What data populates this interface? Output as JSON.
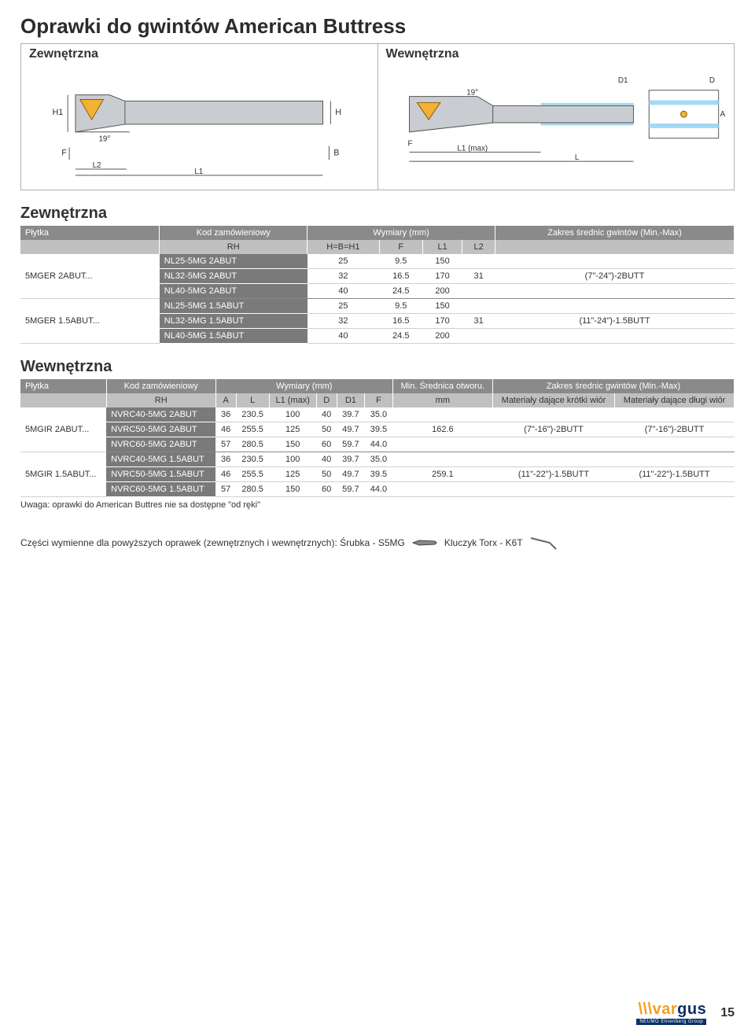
{
  "title": "Oprawki do gwintów American Buttress",
  "diagram": {
    "external_label": "Zewnętrzna",
    "internal_label": "Wewnętrzna",
    "ext_dims": [
      "H1",
      "H",
      "19°",
      "F",
      "B",
      "L2",
      "L1"
    ],
    "int_dims": [
      "D1",
      "D",
      "A",
      "19°",
      "F",
      "L1 (max)",
      "L"
    ],
    "tool_body_color": "#bfc2c6",
    "tool_insert_color": "#f4b233",
    "tool_outline": "#4a4a4a"
  },
  "table_ext": {
    "title": "Zewnętrzna",
    "head1": {
      "plytka": "Płytka",
      "kod": "Kod zamówieniowy",
      "wymiary": "Wymiary (mm)",
      "zakres": "Zakres średnic gwintów (Min.-Max)"
    },
    "head2": [
      "RH",
      "H=B=H1",
      "F",
      "L1",
      "L2",
      ""
    ],
    "groups": [
      {
        "plytka": "5MGER 2ABUT...",
        "l2": "31",
        "range": "(7\"-24\")-2BUTT",
        "rows": [
          {
            "code": "NL25-5MG 2ABUT",
            "h": "25",
            "f": "9.5",
            "l1": "150"
          },
          {
            "code": "NL32-5MG 2ABUT",
            "h": "32",
            "f": "16.5",
            "l1": "170"
          },
          {
            "code": "NL40-5MG 2ABUT",
            "h": "40",
            "f": "24.5",
            "l1": "200"
          }
        ]
      },
      {
        "plytka": "5MGER 1.5ABUT...",
        "l2": "31",
        "range": "(11\"-24\")-1.5BUTT",
        "rows": [
          {
            "code": "NL25-5MG 1.5ABUT",
            "h": "25",
            "f": "9.5",
            "l1": "150"
          },
          {
            "code": "NL32-5MG 1.5ABUT",
            "h": "32",
            "f": "16.5",
            "l1": "170"
          },
          {
            "code": "NL40-5MG 1.5ABUT",
            "h": "40",
            "f": "24.5",
            "l1": "200"
          }
        ]
      }
    ]
  },
  "table_int": {
    "title": "Wewnętrzna",
    "head1": {
      "plytka": "Płytka",
      "kod": "Kod zamówieniowy",
      "wymiary": "Wymiary (mm)",
      "minbore": "Min. Średnica otworu.",
      "zakres": "Zakres średnic gwintów (Min.-Max)"
    },
    "head2": [
      "RH",
      "A",
      "L",
      "L1 (max)",
      "D",
      "D1",
      "F",
      "mm",
      "Materiały dające krótki wiór",
      "Materiały dające długi wiór"
    ],
    "groups": [
      {
        "plytka": "5MGIR 2ABUT...",
        "mm": "162.6",
        "r1": "(7\"-16\")-2BUTT",
        "r2": "(7\"-16\")-2BUTT",
        "rows": [
          {
            "code": "NVRC40-5MG 2ABUT",
            "a": "36",
            "l": "230.5",
            "l1": "100",
            "d": "40",
            "d1": "39.7",
            "f": "35.0"
          },
          {
            "code": "NVRC50-5MG 2ABUT",
            "a": "46",
            "l": "255.5",
            "l1": "125",
            "d": "50",
            "d1": "49.7",
            "f": "39.5"
          },
          {
            "code": "NVRC60-5MG 2ABUT",
            "a": "57",
            "l": "280.5",
            "l1": "150",
            "d": "60",
            "d1": "59.7",
            "f": "44.0"
          }
        ]
      },
      {
        "plytka": "5MGIR 1.5ABUT...",
        "mm": "259.1",
        "r1": "(11\"-22\")-1.5BUTT",
        "r2": "(11\"-22\")-1.5BUTT",
        "rows": [
          {
            "code": "NVRC40-5MG 1.5ABUT",
            "a": "36",
            "l": "230.5",
            "l1": "100",
            "d": "40",
            "d1": "39.7",
            "f": "35.0"
          },
          {
            "code": "NVRC50-5MG 1.5ABUT",
            "a": "46",
            "l": "255.5",
            "l1": "125",
            "d": "50",
            "d1": "49.7",
            "f": "39.5"
          },
          {
            "code": "NVRC60-5MG 1.5ABUT",
            "a": "57",
            "l": "280.5",
            "l1": "150",
            "d": "60",
            "d1": "59.7",
            "f": "44.0"
          }
        ]
      }
    ],
    "note": "Uwaga: oprawki do American Buttres nie sa dostępne \"od ręki\""
  },
  "spares": {
    "text": "Części wymienne dla powyższych oprawek (zewnętrznych i wewnętrznych): Śrubka - S5MG",
    "key_label": "Kluczyk Torx - K6T"
  },
  "footer": {
    "logo_zigzag": "\\\\\\",
    "logo_orange": "var",
    "logo_blue": "gus",
    "logo_sub": "NEUMO Ehrenberg Group",
    "page": "15"
  }
}
